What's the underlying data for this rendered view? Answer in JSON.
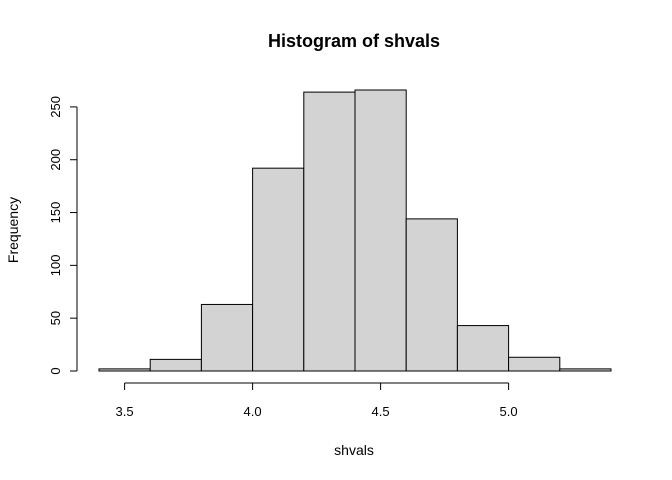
{
  "chart_data": {
    "type": "bar",
    "subtype": "histogram",
    "title": "Histogram of shvals",
    "xlabel": "shvals",
    "ylabel": "Frequency",
    "bins": [
      {
        "from": 3.4,
        "to": 3.6,
        "count": 2
      },
      {
        "from": 3.6,
        "to": 3.8,
        "count": 11
      },
      {
        "from": 3.8,
        "to": 4.0,
        "count": 63
      },
      {
        "from": 4.0,
        "to": 4.2,
        "count": 192
      },
      {
        "from": 4.2,
        "to": 4.4,
        "count": 264
      },
      {
        "from": 4.4,
        "to": 4.6,
        "count": 266
      },
      {
        "from": 4.6,
        "to": 4.8,
        "count": 144
      },
      {
        "from": 4.8,
        "to": 5.0,
        "count": 43
      },
      {
        "from": 5.0,
        "to": 5.2,
        "count": 13
      },
      {
        "from": 5.2,
        "to": 5.4,
        "count": 2
      }
    ],
    "xlim": [
      3.4,
      5.4
    ],
    "ylim": [
      0,
      266
    ],
    "x_ticks": [
      3.5,
      4.0,
      4.5,
      5.0
    ],
    "x_tick_labels": [
      "3.5",
      "4.0",
      "4.5",
      "5.0"
    ],
    "y_ticks": [
      0,
      50,
      100,
      150,
      200,
      250
    ],
    "y_tick_labels": [
      "0",
      "50",
      "100",
      "150",
      "200",
      "250"
    ],
    "grid": false,
    "legend": "none",
    "colors": {
      "bar_fill": "#d3d3d3",
      "bar_stroke": "#000000"
    }
  }
}
